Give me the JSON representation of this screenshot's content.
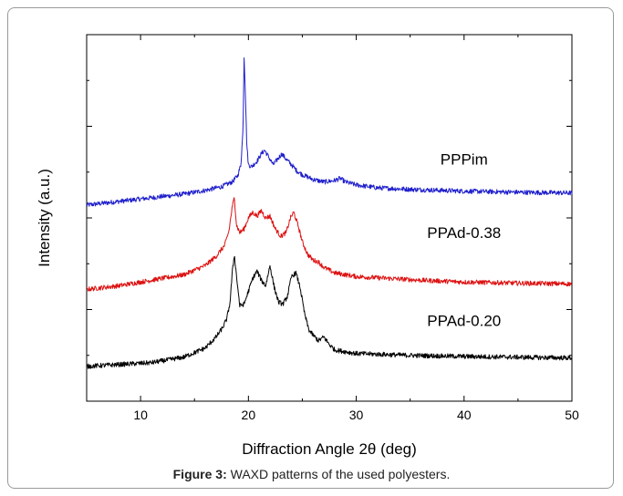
{
  "figure": {
    "caption_label": "Figure 3:",
    "caption_text": " WAXD patterns of the used polyesters."
  },
  "colors": {
    "blue": "#1f1fcc",
    "red": "#dd1111",
    "black": "#000000"
  },
  "chart_data": {
    "type": "line",
    "title": "",
    "xlabel": "Diffraction Angle 2θ (deg)",
    "ylabel": "Intensity (a.u.)",
    "xlim": [
      5,
      50
    ],
    "xticks": [
      10,
      20,
      30,
      40,
      50
    ],
    "ylim": [
      0,
      100
    ],
    "grid": false,
    "legend": "inline-labels",
    "series": [
      {
        "name": "PPPim",
        "color": "#1f1fcc",
        "x": [
          5,
          8,
          11,
          14,
          16,
          17.5,
          18.5,
          19.0,
          19.3,
          19.5,
          19.6,
          19.7,
          19.85,
          20.0,
          20.3,
          20.8,
          21.2,
          21.5,
          21.9,
          22.3,
          22.7,
          23.1,
          23.5,
          24.0,
          24.5,
          25.0,
          26.0,
          27.0,
          28.0,
          28.5,
          29.0,
          30.0,
          32,
          35,
          40,
          45,
          50
        ],
        "y": [
          53.5,
          54.5,
          55.5,
          56.5,
          57.5,
          58.5,
          59.8,
          61.5,
          64.5,
          74,
          94,
          86,
          70,
          64.5,
          64.0,
          65.5,
          67.5,
          68.5,
          66.5,
          64.5,
          66,
          67.5,
          66,
          64.5,
          62.8,
          61.8,
          60.5,
          59.8,
          60.2,
          60.8,
          59.8,
          59.0,
          58.2,
          57.8,
          57.3,
          57.0,
          56.8
        ]
      },
      {
        "name": "PPAd-0.38",
        "color": "#dd1111",
        "x": [
          5,
          8,
          11,
          14,
          16,
          17.0,
          17.8,
          18.2,
          18.5,
          18.7,
          18.9,
          19.2,
          19.6,
          20.0,
          20.4,
          20.8,
          21.2,
          21.6,
          22.0,
          22.5,
          23.0,
          23.5,
          23.9,
          24.2,
          24.6,
          25.0,
          25.5,
          26.0,
          26.5,
          27.0,
          28.0,
          30.0,
          33,
          36,
          40,
          45,
          50
        ],
        "y": [
          30.5,
          31.5,
          33,
          34.5,
          37,
          39.5,
          42.5,
          46.5,
          53,
          55.5,
          48,
          46,
          47,
          50,
          51.5,
          50.5,
          52,
          50,
          50.5,
          47,
          45,
          46,
          50,
          51.5,
          48,
          43.5,
          40,
          38.5,
          38,
          36.5,
          35.0,
          34.0,
          33.5,
          33.0,
          32.5,
          32.2,
          32.0
        ]
      },
      {
        "name": "PPAd-0.20",
        "color": "#000000",
        "x": [
          5,
          8,
          11,
          14,
          16,
          17.0,
          17.6,
          18.0,
          18.3,
          18.5,
          18.7,
          18.9,
          19.2,
          19.6,
          20.0,
          20.4,
          20.8,
          21.2,
          21.6,
          22.0,
          22.4,
          22.8,
          23.2,
          23.6,
          24.0,
          24.4,
          24.8,
          25.2,
          25.6,
          26.0,
          26.5,
          27.0,
          27.5,
          28.0,
          29.0,
          30.0,
          32,
          35,
          40,
          45,
          50
        ],
        "y": [
          9.5,
          10,
          10.5,
          12,
          14.5,
          17.5,
          20,
          22.5,
          27,
          35,
          40,
          34,
          26,
          26.5,
          30,
          33.5,
          35.5,
          33,
          31.5,
          37,
          31,
          27,
          26.5,
          28.5,
          34,
          35,
          31,
          24,
          19.5,
          18,
          16.5,
          17.5,
          15.5,
          14.0,
          13.5,
          13.0,
          12.8,
          12.5,
          12.2,
          12.0,
          11.8
        ]
      }
    ],
    "annotations": [
      {
        "text": "PPPim",
        "x": 40,
        "y": 64.5
      },
      {
        "text": "PPAd-0.38",
        "x": 40,
        "y": 44.5
      },
      {
        "text": "PPAd-0.20",
        "x": 40,
        "y": 20.5
      }
    ]
  }
}
